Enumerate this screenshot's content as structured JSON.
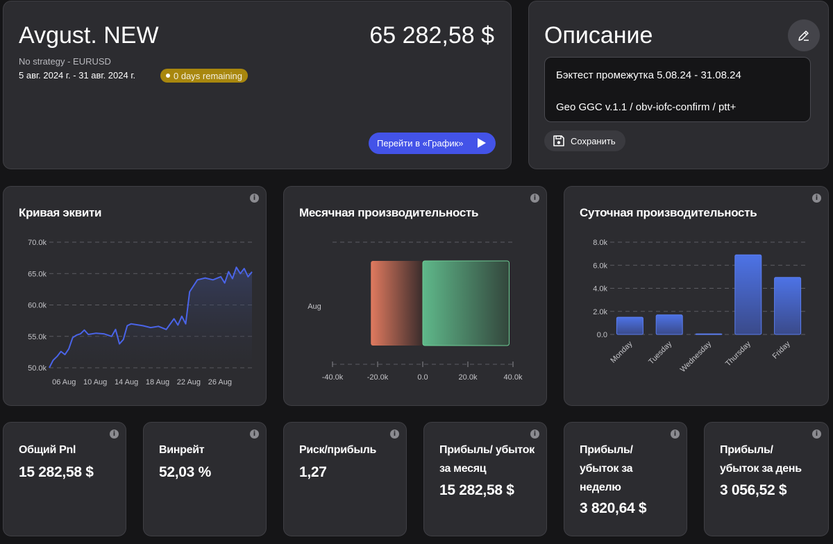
{
  "account": {
    "name": "Avgust. NEW",
    "balance": "65 282,58 $",
    "strategy": "No strategy - EURUSD",
    "dates": "5 авг. 2024 г. - 31 авг. 2024 г.",
    "remaining": "0 days remaining",
    "chart_button": "Перейти в «График»"
  },
  "description": {
    "title": "Описание",
    "line1": "Бэктест промежутка 5.08.24 - 31.08.24",
    "line2": "Geo GGC v.1.1 / obv-iofc-confirm / ptt+",
    "save_label": "Сохранить"
  },
  "equity": {
    "title": "Кривая эквити",
    "y_ticks": [
      "70.0k",
      "65.0k",
      "60.0k",
      "55.0k",
      "50.0k"
    ],
    "x_ticks": [
      "06 Aug",
      "10 Aug",
      "14 Aug",
      "18 Aug",
      "22 Aug",
      "26 Aug"
    ]
  },
  "monthly": {
    "title": "Месячная производительность",
    "y_label": "Aug",
    "x_ticks": [
      "-40.0k",
      "-20.0k",
      "0.0",
      "20.0k",
      "40.0k"
    ]
  },
  "daily": {
    "title": "Суточная производительность",
    "y_ticks": [
      "8.0k",
      "6.0k",
      "4.0k",
      "2.0k",
      "0.0"
    ]
  },
  "chart_data": [
    {
      "type": "line",
      "title": "Кривая эквити",
      "ylim": [
        50000,
        70000
      ],
      "x": [
        "2024-08-05",
        "2024-08-05",
        "2024-08-06",
        "2024-08-06",
        "2024-08-07",
        "2024-08-07",
        "2024-08-08",
        "2024-08-08",
        "2024-08-09",
        "2024-08-09",
        "2024-08-10",
        "2024-08-11",
        "2024-08-12",
        "2024-08-13",
        "2024-08-13",
        "2024-08-14",
        "2024-08-14",
        "2024-08-15",
        "2024-08-15",
        "2024-08-16",
        "2024-08-17",
        "2024-08-18",
        "2024-08-19",
        "2024-08-20",
        "2024-08-21",
        "2024-08-21",
        "2024-08-22",
        "2024-08-22",
        "2024-08-23",
        "2024-08-24",
        "2024-08-25",
        "2024-08-26",
        "2024-08-27",
        "2024-08-27",
        "2024-08-28",
        "2024-08-28",
        "2024-08-29",
        "2024-08-29",
        "2024-08-30",
        "2024-08-30",
        "2024-08-31"
      ],
      "values": [
        50000,
        51200,
        51800,
        52600,
        52100,
        53000,
        54800,
        55200,
        55400,
        56000,
        55300,
        55500,
        55400,
        55000,
        56100,
        53800,
        54500,
        56700,
        57000,
        56900,
        56700,
        56400,
        56600,
        56100,
        57800,
        56800,
        58200,
        57000,
        62100,
        64000,
        64300,
        64000,
        64500,
        63500,
        65300,
        64200,
        66000,
        65000,
        65800,
        64500,
        65282
      ]
    },
    {
      "type": "bar",
      "title": "Месячная производительность",
      "categories": [
        "Aug"
      ],
      "series": [
        {
          "values": [
            -23000
          ]
        },
        {
          "values": [
            38300
          ]
        }
      ],
      "xlim": [
        -40000,
        40000
      ]
    },
    {
      "type": "bar",
      "title": "Суточная производительность",
      "categories": [
        "Monday",
        "Tuesday",
        "Wednesday",
        "Thursday",
        "Friday"
      ],
      "values": [
        1500,
        1700,
        50,
        6900,
        4950
      ],
      "ylim": [
        0,
        8000
      ],
      "colors": {
        "bar": "#4d73e6"
      }
    }
  ],
  "stats": [
    {
      "label": "Общий Pnl",
      "value": "15 282,58 $"
    },
    {
      "label": "Винрейт",
      "value": "52,03 %"
    },
    {
      "label": "Риск/прибыль",
      "value": "1,27"
    },
    {
      "label": "Прибыль/ убыток за месяц",
      "value": "15 282,58 $"
    },
    {
      "label": "Прибыль/ убыток за неделю",
      "value": "3 820,64 $"
    },
    {
      "label": "Прибыль/ убыток за день",
      "value": "3 056,52 $"
    }
  ],
  "icons": {
    "info": "i"
  }
}
